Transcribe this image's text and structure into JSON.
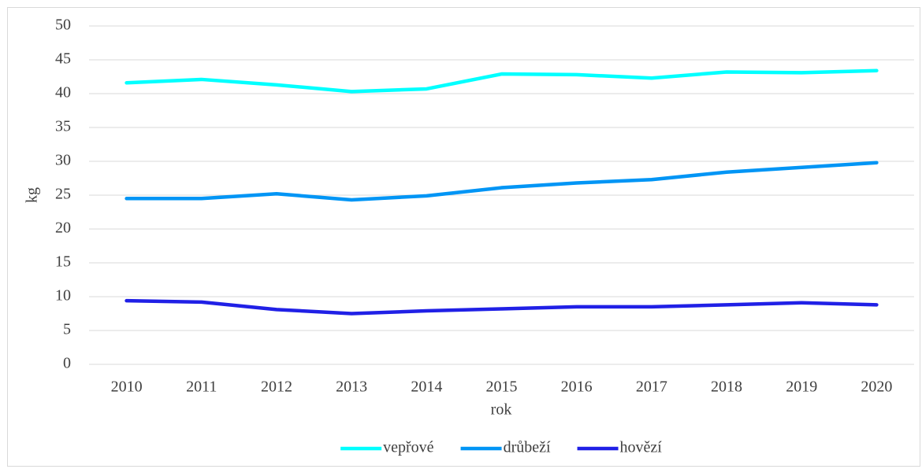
{
  "chart_data": {
    "type": "line",
    "x_label": "rok",
    "y_label": "kg",
    "categories": [
      "2010",
      "2011",
      "2012",
      "2013",
      "2014",
      "2015",
      "2016",
      "2017",
      "2018",
      "2019",
      "2020"
    ],
    "series": [
      {
        "name": "vepřové",
        "color": "#00ffff",
        "values": [
          41.6,
          42.1,
          41.3,
          40.3,
          40.7,
          42.9,
          42.8,
          42.3,
          43.2,
          43.1,
          43.4
        ]
      },
      {
        "name": "drůbeží",
        "color": "#0095f5",
        "values": [
          24.5,
          24.5,
          25.2,
          24.3,
          24.9,
          26.1,
          26.8,
          27.3,
          28.4,
          29.1,
          29.8
        ]
      },
      {
        "name": "hovězí",
        "color": "#2020e6",
        "values": [
          9.4,
          9.2,
          8.1,
          7.5,
          7.9,
          8.2,
          8.5,
          8.5,
          8.8,
          9.1,
          8.8
        ]
      }
    ],
    "ylim": [
      0,
      50
    ],
    "yticks": [
      0,
      5,
      10,
      15,
      20,
      25,
      30,
      35,
      40,
      45,
      50
    ],
    "grid": true,
    "legend": "bottom"
  }
}
